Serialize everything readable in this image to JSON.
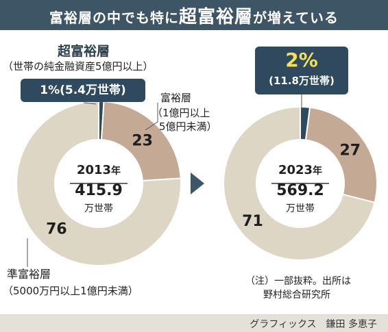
{
  "title": {
    "part1": "富裕層の中でも特に",
    "emphasis": "超富裕層",
    "part2": "が増えている"
  },
  "labels": {
    "ultra_title": "超富裕層",
    "ultra_def": "（世帯の純金融資産5億円以上）",
    "affluent_title": "富裕層",
    "affluent_def_1": "（1億円以上",
    "affluent_def_2": "5億円未満）",
    "semi_title": "準富裕層",
    "semi_def": "（5000万円以上1億円未満）"
  },
  "note": {
    "line1": "（注）一部抜粋。出所は",
    "line2": "野村総合研究所"
  },
  "credit": "グラフィックス　鎌田 多恵子",
  "colors": {
    "ultra": "#2f4a5e",
    "affluent": "#c4a995",
    "semi": "#ddd6c5",
    "header": "#3e5566",
    "arrow": "#3e5566"
  },
  "chart_data": [
    {
      "type": "pie",
      "center_year_value": "2013",
      "center_year_unit": "年",
      "center_total": "415.9",
      "center_total_unit": "万世帯",
      "ultra_callout_value": "1%",
      "ultra_callout_sub": "(5.4万世帯)",
      "slices": [
        {
          "name": "超富裕層",
          "value": 1
        },
        {
          "name": "富裕層",
          "value": 23,
          "label": "23"
        },
        {
          "name": "準富裕層",
          "value": 76,
          "label": "76"
        }
      ]
    },
    {
      "type": "pie",
      "center_year_value": "2023",
      "center_year_unit": "年",
      "center_total": "569.2",
      "center_total_unit": "万世帯",
      "ultra_callout_value": "2%",
      "ultra_callout_sub": "(11.8万世帯)",
      "slices": [
        {
          "name": "超富裕層",
          "value": 2
        },
        {
          "name": "富裕層",
          "value": 27,
          "label": "27"
        },
        {
          "name": "準富裕層",
          "value": 71,
          "label": "71"
        }
      ]
    }
  ]
}
